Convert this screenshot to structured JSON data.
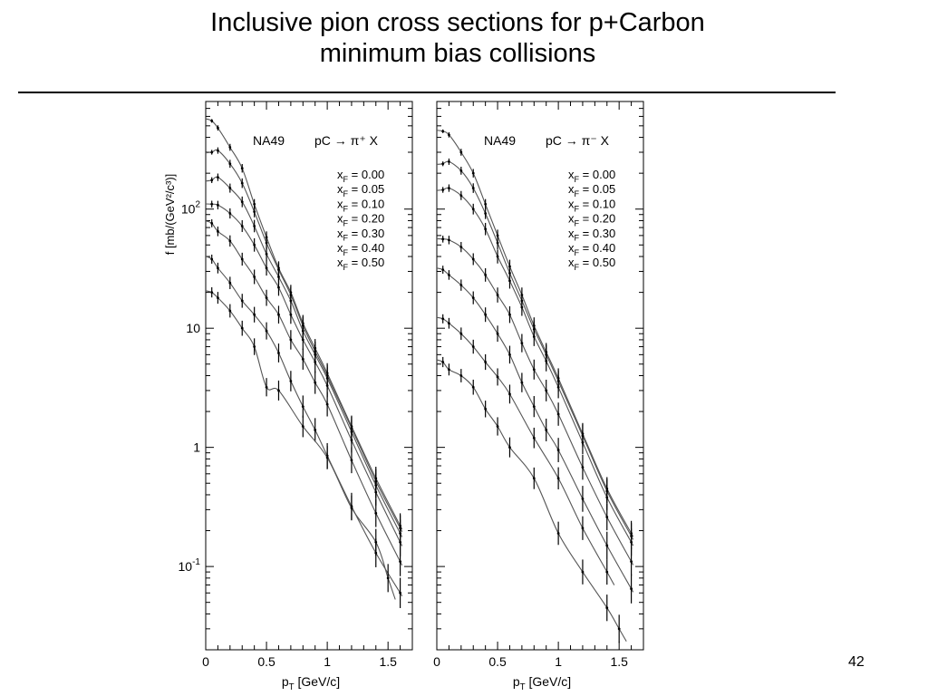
{
  "slide": {
    "title_line1": "Inclusive pion cross sections for p+Carbon",
    "title_line2": "minimum bias collisions",
    "page_number": "42"
  },
  "chart_data": [
    {
      "type": "scatter",
      "experiment_label": "NA49",
      "reaction_label": "pC → π⁺ X",
      "xlabel": "p_T [GeV/c]",
      "ylabel": "f [mb/(GeV²/c³)]",
      "xlim": [
        0,
        1.7
      ],
      "ylim": [
        0.02,
        800
      ],
      "y_scale": "log",
      "x_ticks": [
        "0",
        "0.5",
        "1",
        "1.5"
      ],
      "y_ticks": [
        "10⁻¹",
        "1",
        "10",
        "10²"
      ],
      "legend_placement": "top-right",
      "series": [
        {
          "name": "x_F = 0.00",
          "x": [
            0.05,
            0.1,
            0.2,
            0.3,
            0.4,
            0.5,
            0.6,
            0.7,
            0.8,
            0.9,
            1.0,
            1.2,
            1.4,
            1.6
          ],
          "y": [
            550,
            480,
            330,
            220,
            110,
            58,
            32,
            20,
            11,
            6.8,
            4.2,
            1.5,
            0.55,
            0.22
          ]
        },
        {
          "name": "x_F = 0.05",
          "x": [
            0.05,
            0.1,
            0.2,
            0.3,
            0.4,
            0.5,
            0.6,
            0.7,
            0.8,
            0.9,
            1.0,
            1.2,
            1.4,
            1.6
          ],
          "y": [
            300,
            310,
            240,
            165,
            95,
            52,
            31,
            19,
            10.5,
            6.4,
            4.0,
            1.45,
            0.52,
            0.21
          ]
        },
        {
          "name": "x_F = 0.10",
          "x": [
            0.05,
            0.1,
            0.2,
            0.3,
            0.4,
            0.5,
            0.6,
            0.7,
            0.8,
            0.9,
            1.0,
            1.2,
            1.4,
            1.6
          ],
          "y": [
            175,
            185,
            150,
            115,
            72,
            42,
            27,
            17,
            9.5,
            6.0,
            3.8,
            1.35,
            0.48,
            0.19
          ]
        },
        {
          "name": "x_F = 0.20",
          "x": [
            0.05,
            0.1,
            0.2,
            0.3,
            0.4,
            0.5,
            0.6,
            0.7,
            0.8,
            0.9,
            1.0,
            1.2,
            1.4,
            1.6
          ],
          "y": [
            110,
            108,
            92,
            72,
            50,
            32,
            22,
            13,
            8.0,
            5.2,
            3.3,
            1.15,
            0.42,
            0.16
          ]
        },
        {
          "name": "x_F = 0.30",
          "x": [
            0.05,
            0.1,
            0.2,
            0.3,
            0.4,
            0.5,
            0.6,
            0.7,
            0.8,
            0.9,
            1.0,
            1.2,
            1.4,
            1.6
          ],
          "y": [
            76,
            65,
            54,
            38,
            27,
            18,
            13,
            8.0,
            5.5,
            3.5,
            2.3,
            0.78,
            0.28,
            0.11
          ]
        },
        {
          "name": "x_F = 0.40",
          "x": [
            0.05,
            0.1,
            0.2,
            0.3,
            0.4,
            0.5,
            0.6,
            0.7,
            0.8,
            0.9,
            1.0,
            1.2,
            1.4,
            1.6
          ],
          "y": [
            38,
            32,
            24,
            17,
            13,
            9.5,
            6.2,
            3.6,
            2.2,
            1.4,
            0.85,
            0.32,
            0.13,
            0.06
          ]
        },
        {
          "name": "x_F = 0.50",
          "x": [
            0.05,
            0.1,
            0.2,
            0.3,
            0.4,
            0.5,
            0.6,
            0.8,
            1.0,
            1.2,
            1.4,
            1.5
          ],
          "y": [
            20,
            18,
            14,
            10,
            7,
            3.2,
            3.0,
            1.5,
            0.82,
            0.31,
            0.16,
            0.08
          ]
        }
      ]
    },
    {
      "type": "scatter",
      "experiment_label": "NA49",
      "reaction_label": "pC → π⁻ X",
      "xlabel": "p_T [GeV/c]",
      "ylabel": "",
      "xlim": [
        0,
        1.7
      ],
      "ylim": [
        0.02,
        800
      ],
      "y_scale": "log",
      "x_ticks": [
        "0",
        "0.5",
        "1",
        "1.5"
      ],
      "y_ticks": [],
      "legend_placement": "top-right",
      "series": [
        {
          "name": "x_F = 0.00",
          "x": [
            0.05,
            0.1,
            0.2,
            0.3,
            0.4,
            0.5,
            0.6,
            0.7,
            0.8,
            0.9,
            1.0,
            1.2,
            1.4,
            1.6
          ],
          "y": [
            450,
            420,
            300,
            200,
            110,
            60,
            33,
            19,
            10.5,
            6.3,
            3.8,
            1.3,
            0.45,
            0.19
          ]
        },
        {
          "name": "x_F = 0.05",
          "x": [
            0.05,
            0.1,
            0.2,
            0.3,
            0.4,
            0.5,
            0.6,
            0.7,
            0.8,
            0.9,
            1.0,
            1.2,
            1.4,
            1.6
          ],
          "y": [
            240,
            250,
            210,
            150,
            92,
            52,
            29,
            17,
            9.8,
            6.0,
            3.6,
            1.25,
            0.43,
            0.18
          ]
        },
        {
          "name": "x_F = 0.10",
          "x": [
            0.05,
            0.1,
            0.2,
            0.3,
            0.4,
            0.5,
            0.6,
            0.7,
            0.8,
            0.9,
            1.0,
            1.2,
            1.4,
            1.6
          ],
          "y": [
            145,
            150,
            130,
            100,
            68,
            40,
            25,
            15,
            8.5,
            5.3,
            3.2,
            1.1,
            0.38,
            0.16
          ]
        },
        {
          "name": "x_F = 0.20",
          "x": [
            0.05,
            0.1,
            0.2,
            0.3,
            0.4,
            0.5,
            0.6,
            0.7,
            0.8,
            0.9,
            1.0,
            1.2,
            1.4,
            1.6
          ],
          "y": [
            56,
            55,
            48,
            38,
            28,
            19,
            13,
            7.5,
            4.5,
            3.0,
            1.9,
            0.68,
            0.26,
            0.11
          ]
        },
        {
          "name": "x_F = 0.30",
          "x": [
            0.05,
            0.1,
            0.2,
            0.3,
            0.4,
            0.5,
            0.6,
            0.7,
            0.8,
            0.9,
            1.0,
            1.2,
            1.4,
            1.6
          ],
          "y": [
            31,
            28,
            23,
            18,
            13,
            9.0,
            6.0,
            3.5,
            2.2,
            1.4,
            0.95,
            0.37,
            0.15,
            0.065
          ]
        },
        {
          "name": "x_F = 0.40",
          "x": [
            0.05,
            0.1,
            0.2,
            0.3,
            0.4,
            0.5,
            0.6,
            0.8,
            1.0,
            1.2,
            1.4
          ],
          "y": [
            12,
            11,
            9,
            7,
            5.2,
            3.9,
            2.8,
            1.2,
            0.55,
            0.21,
            0.09
          ]
        },
        {
          "name": "x_F = 0.50",
          "x": [
            0.05,
            0.1,
            0.2,
            0.3,
            0.4,
            0.5,
            0.6,
            0.8,
            1.0,
            1.2,
            1.4,
            1.5
          ],
          "y": [
            5.2,
            4.5,
            4.0,
            3.2,
            2.1,
            1.5,
            1.0,
            0.55,
            0.19,
            0.09,
            0.045,
            0.03
          ]
        }
      ]
    }
  ]
}
